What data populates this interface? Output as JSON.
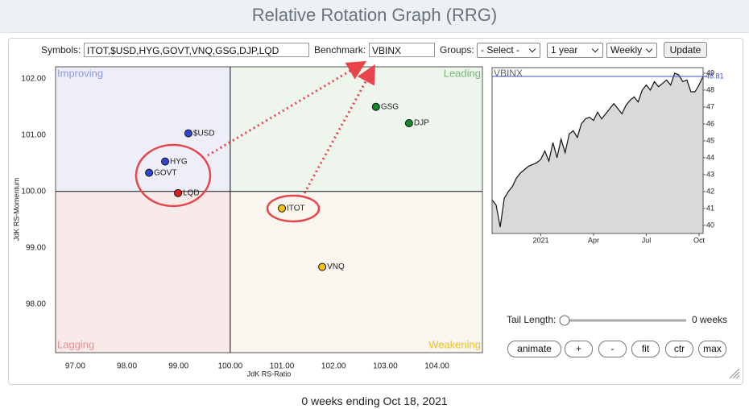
{
  "header": {
    "title": "Relative Rotation Graph (RRG)"
  },
  "controls": {
    "symbols_label": "Symbols:",
    "symbols": "ITOT,$USD,HYG,GOVT,VNQ,GSG,DJP,LQD",
    "benchmark_label": "Benchmark:",
    "benchmark": "VBINX",
    "groups_label": "Groups:",
    "groups": "- Select -",
    "period": "1 year",
    "frequency": "Weekly",
    "update": "Update",
    "tail_label": "Tail Length:",
    "tail_value": "0 weeks",
    "buttons": [
      "animate",
      "+",
      "-",
      "fit",
      "ctr",
      "max"
    ]
  },
  "chart_data": [
    {
      "type": "scatter",
      "x_label": "JdK RS-Ratio",
      "y_label": "JdK RS-Momentum",
      "quadrant_labels": [
        "Improving",
        "Leading",
        "Lagging",
        "Weakening"
      ],
      "xlim": [
        96.62,
        104.88
      ],
      "ylim": [
        97.14,
        102.21
      ],
      "xticks": [
        {
          "value": 97,
          "label": "97.00"
        },
        {
          "value": 98,
          "label": "98.00"
        },
        {
          "value": 99,
          "label": "99.00"
        },
        {
          "value": 100,
          "label": "100.00"
        },
        {
          "value": 101,
          "label": "101.00"
        },
        {
          "value": 102,
          "label": "102.00"
        },
        {
          "value": 103,
          "label": "103.00"
        },
        {
          "value": 104,
          "label": "104.00"
        }
      ],
      "yticks": [
        {
          "value": 98,
          "label": "98.00"
        },
        {
          "value": 99,
          "label": "99.00"
        },
        {
          "value": 100,
          "label": "100.00"
        },
        {
          "value": 101,
          "label": "101.00"
        },
        {
          "value": 102,
          "label": "102.00"
        }
      ],
      "series": [
        {
          "name": "$USD",
          "color": "#3346d0",
          "x": [
            99.19
          ],
          "values": [
            101.03
          ]
        },
        {
          "name": "HYG",
          "color": "#3346d0",
          "x": [
            98.74
          ],
          "values": [
            100.53
          ]
        },
        {
          "name": "GOVT",
          "color": "#3346d0",
          "x": [
            98.43
          ],
          "values": [
            100.33
          ]
        },
        {
          "name": "LQD",
          "color": "#e41c1c",
          "x": [
            98.99
          ],
          "values": [
            99.97
          ]
        },
        {
          "name": "ITOT",
          "color": "#f4c20d",
          "x": [
            101.0
          ],
          "values": [
            99.7
          ]
        },
        {
          "name": "VNQ",
          "color": "#f4c20d",
          "x": [
            101.78
          ],
          "values": [
            98.66
          ]
        },
        {
          "name": "GSG",
          "color": "#168a2a",
          "x": [
            102.82
          ],
          "values": [
            101.5
          ]
        },
        {
          "name": "DJP",
          "color": "#168a2a",
          "x": [
            103.46
          ],
          "values": [
            101.21
          ]
        }
      ]
    },
    {
      "type": "line",
      "xlim": [
        0,
        52
      ],
      "ylim": [
        39.52,
        49.33
      ],
      "xticks": [
        {
          "value": 12,
          "label": "2021"
        },
        {
          "value": 25,
          "label": "Apr"
        },
        {
          "value": 38,
          "label": "Jul"
        },
        {
          "value": 51,
          "label": "Oct"
        }
      ],
      "yticks": [
        40,
        41,
        42,
        43,
        44,
        45,
        46,
        47,
        48,
        49
      ],
      "series": [
        {
          "name": "VBINX",
          "color": "#111111",
          "fill": "#d9d9d9",
          "values": [
            41.5,
            41.2,
            39.9,
            41.6,
            42.0,
            42.3,
            42.8,
            43.1,
            43.3,
            43.5,
            43.6,
            43.7,
            43.9,
            44.4,
            43.8,
            44.9,
            44.0,
            45.1,
            44.3,
            45.4,
            45.6,
            45.2,
            46.0,
            46.3,
            46.4,
            46.2,
            46.7,
            46.3,
            46.6,
            46.9,
            47.2,
            46.9,
            46.6,
            47.1,
            47.4,
            47.6,
            47.3,
            48.0,
            48.3,
            48.0,
            48.5,
            48.2,
            48.4,
            48.6,
            48.3,
            49.0,
            48.9,
            48.5,
            48.6,
            47.9,
            47.9,
            48.3,
            48.81
          ]
        }
      ],
      "last_color": "#3b4fd0"
    }
  ],
  "footer": "0 weeks ending Oct 18, 2021"
}
